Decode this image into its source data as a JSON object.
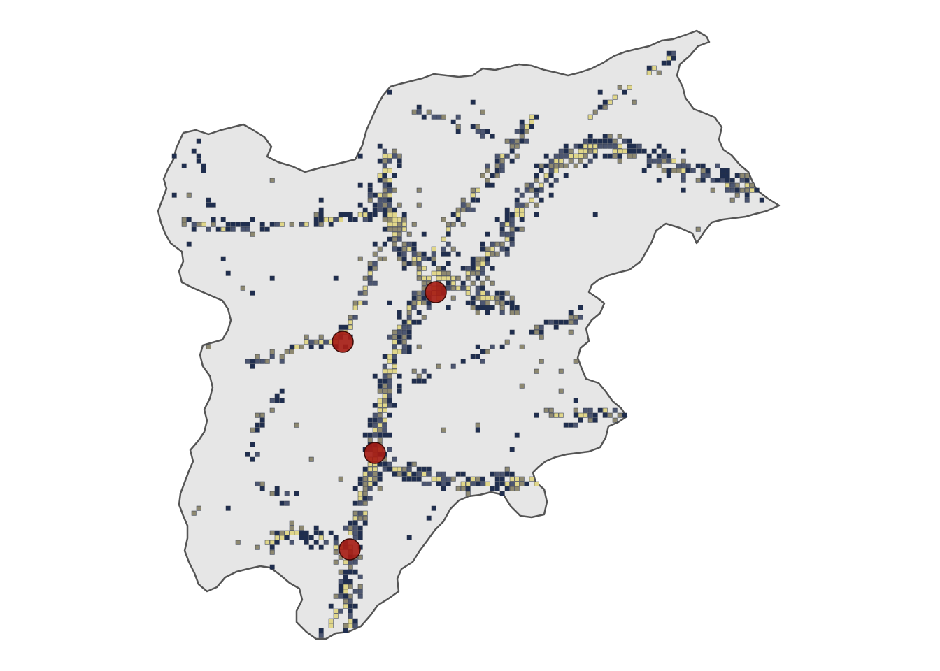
{
  "map": {
    "colors": {
      "background": "#ffffff",
      "region_fill": "#e6e6e6",
      "region_stroke": "#555555",
      "cell_high": "#1f2e4f",
      "cell_mid": "#4c5671",
      "cell_low": "#8d8870",
      "cell_peak": "#e0d68a",
      "cell_stroke": "#2a3246",
      "point_fill": "#a51b12",
      "point_stroke": "#3a0a06"
    },
    "icons": {
      "point_marker": "filled-circle",
      "grid_cell": "square"
    },
    "point_count": 4
  }
}
